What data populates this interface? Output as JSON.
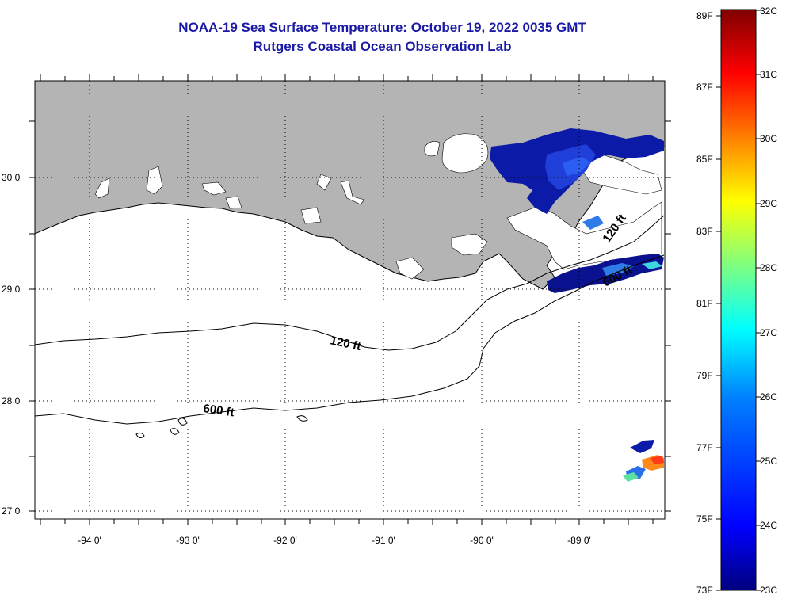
{
  "title": "NOAA-19 Sea Surface Temperature:  October 19, 2022 0035 GMT",
  "subtitle": "Rutgers Coastal Ocean Observation Lab",
  "map": {
    "lat_labels": [
      "30 0'",
      "29 0'",
      "28 0'",
      "27 0'"
    ],
    "lon_labels": [
      "-94 0'",
      "-93 0'",
      "-92 0'",
      "-91 0'",
      "-90 0'",
      "-89 0'"
    ],
    "contour_labels": [
      "120 ft",
      "120 ft",
      "600 ft",
      "600 ft"
    ],
    "land_color": "#b4b4b4",
    "water_color": "#ffffff"
  },
  "colorbar": {
    "celsius_labels": [
      "32C",
      "31C",
      "30C",
      "29C",
      "28C",
      "27C",
      "26C",
      "25C",
      "24C",
      "23C"
    ],
    "fahrenheit_labels": [
      "89F",
      "87F",
      "85F",
      "83F",
      "81F",
      "79F",
      "77F",
      "75F",
      "73F"
    ],
    "colormap": [
      "#00007f",
      "#0000ff",
      "#007fff",
      "#00ffff",
      "#7fff7f",
      "#ffff00",
      "#ff7f00",
      "#ff0000",
      "#7f0000"
    ]
  }
}
